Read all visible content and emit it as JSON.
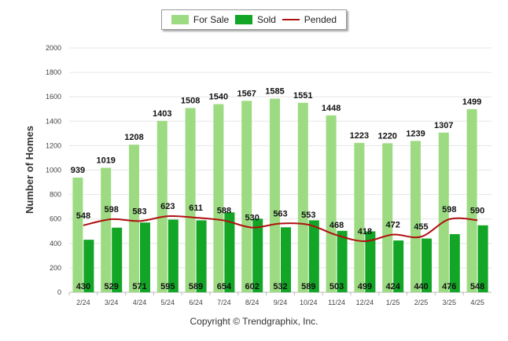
{
  "colors": {
    "for_sale": "#9ddb83",
    "sold": "#12a526",
    "pended": "#b01010"
  },
  "legend": {
    "for_sale": "For Sale",
    "sold": "Sold",
    "pended": "Pended"
  },
  "copyright": "Copyright © Trendgraphix, Inc.",
  "chart_data": {
    "type": "bar",
    "ylabel": "Number of Homes",
    "ylim": [
      0,
      2000
    ],
    "yticks": [
      "0",
      "200",
      "400",
      "600",
      "800",
      "1000",
      "1200",
      "1400",
      "1600",
      "1800",
      "2000"
    ],
    "categories": [
      "2/24",
      "3/24",
      "4/24",
      "5/24",
      "6/24",
      "7/24",
      "8/24",
      "9/24",
      "10/24",
      "11/24",
      "12/24",
      "1/25",
      "2/25",
      "3/25",
      "4/25"
    ],
    "series": [
      {
        "name": "For Sale",
        "type": "bar",
        "values": [
          939,
          1019,
          1208,
          1403,
          1508,
          1540,
          1567,
          1585,
          1551,
          1448,
          1223,
          1220,
          1239,
          1307,
          1499
        ]
      },
      {
        "name": "Sold",
        "type": "bar",
        "values": [
          430,
          529,
          571,
          595,
          589,
          654,
          602,
          532,
          589,
          503,
          499,
          424,
          440,
          476,
          548
        ]
      },
      {
        "name": "Pended",
        "type": "line",
        "values": [
          548,
          598,
          583,
          623,
          611,
          588,
          530,
          563,
          553,
          468,
          418,
          472,
          455,
          598,
          590
        ]
      }
    ],
    "legend_position": "top-center",
    "grid": true
  }
}
